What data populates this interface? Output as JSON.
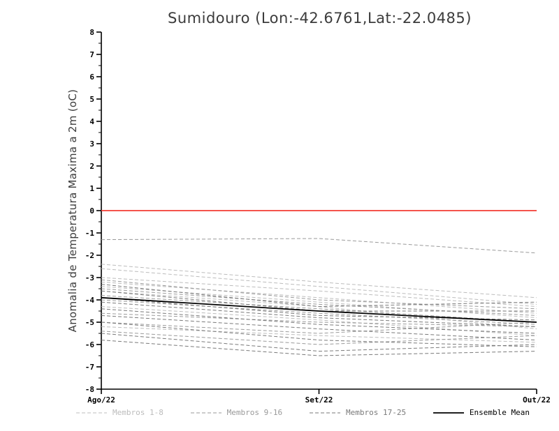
{
  "title": "Sumidouro (Lon:-42.6761,Lat:-22.0485)",
  "chart_data": {
    "type": "line",
    "title": "Sumidouro (Lon:-42.6761,Lat:-22.0485)",
    "xlabel": "",
    "ylabel": "Anomalia de Temperatura Maxima a 2m (oC)",
    "x_categories": [
      "Ago/22",
      "Set/22",
      "Out/22"
    ],
    "ylim": [
      -8,
      8
    ],
    "ytick_step": 1,
    "grid": false,
    "legend_position": "bottom",
    "zero_line_color": "#f23c32",
    "axis_color": "#000000",
    "groups": [
      {
        "name": "Membros 1-8",
        "color": "#bcbcbc",
        "dash": true,
        "series": [
          [
            -2.4,
            -3.2,
            -3.9
          ],
          [
            -2.6,
            -3.4,
            -4.2
          ],
          [
            -3.0,
            -3.6,
            -4.3
          ],
          [
            -3.2,
            -3.9,
            -4.6
          ],
          [
            -3.4,
            -4.1,
            -4.8
          ],
          [
            -3.6,
            -4.3,
            -5.3
          ],
          [
            -4.3,
            -4.9,
            -5.6
          ],
          [
            -5.2,
            -5.6,
            -5.9
          ]
        ]
      },
      {
        "name": "Membros 9-16",
        "color": "#9a9a9a",
        "dash": true,
        "series": [
          [
            -1.3,
            -1.25,
            -1.9
          ],
          [
            -3.1,
            -4.0,
            -4.4
          ],
          [
            -3.5,
            -4.2,
            -4.7
          ],
          [
            -3.8,
            -4.4,
            -5.0
          ],
          [
            -4.0,
            -4.6,
            -5.1
          ],
          [
            -4.6,
            -5.0,
            -5.2
          ],
          [
            -5.0,
            -5.5,
            -5.0
          ],
          [
            -5.4,
            -6.0,
            -5.6
          ]
        ]
      },
      {
        "name": "Membros 17-25",
        "color": "#7a7a7a",
        "dash": true,
        "series": [
          [
            -3.3,
            -4.3,
            -4.1
          ],
          [
            -3.6,
            -4.5,
            -4.5
          ],
          [
            -3.9,
            -4.7,
            -4.9
          ],
          [
            -4.1,
            -4.8,
            -5.2
          ],
          [
            -4.4,
            -5.1,
            -5.5
          ],
          [
            -4.7,
            -5.3,
            -5.8
          ],
          [
            -5.0,
            -5.8,
            -6.1
          ],
          [
            -5.5,
            -6.3,
            -6.0
          ],
          [
            -5.8,
            -6.5,
            -6.3
          ]
        ]
      },
      {
        "name": "Ensemble Mean",
        "color": "#000000",
        "dash": false,
        "series": [
          [
            -3.9,
            -4.5,
            -5.0
          ]
        ]
      }
    ]
  }
}
